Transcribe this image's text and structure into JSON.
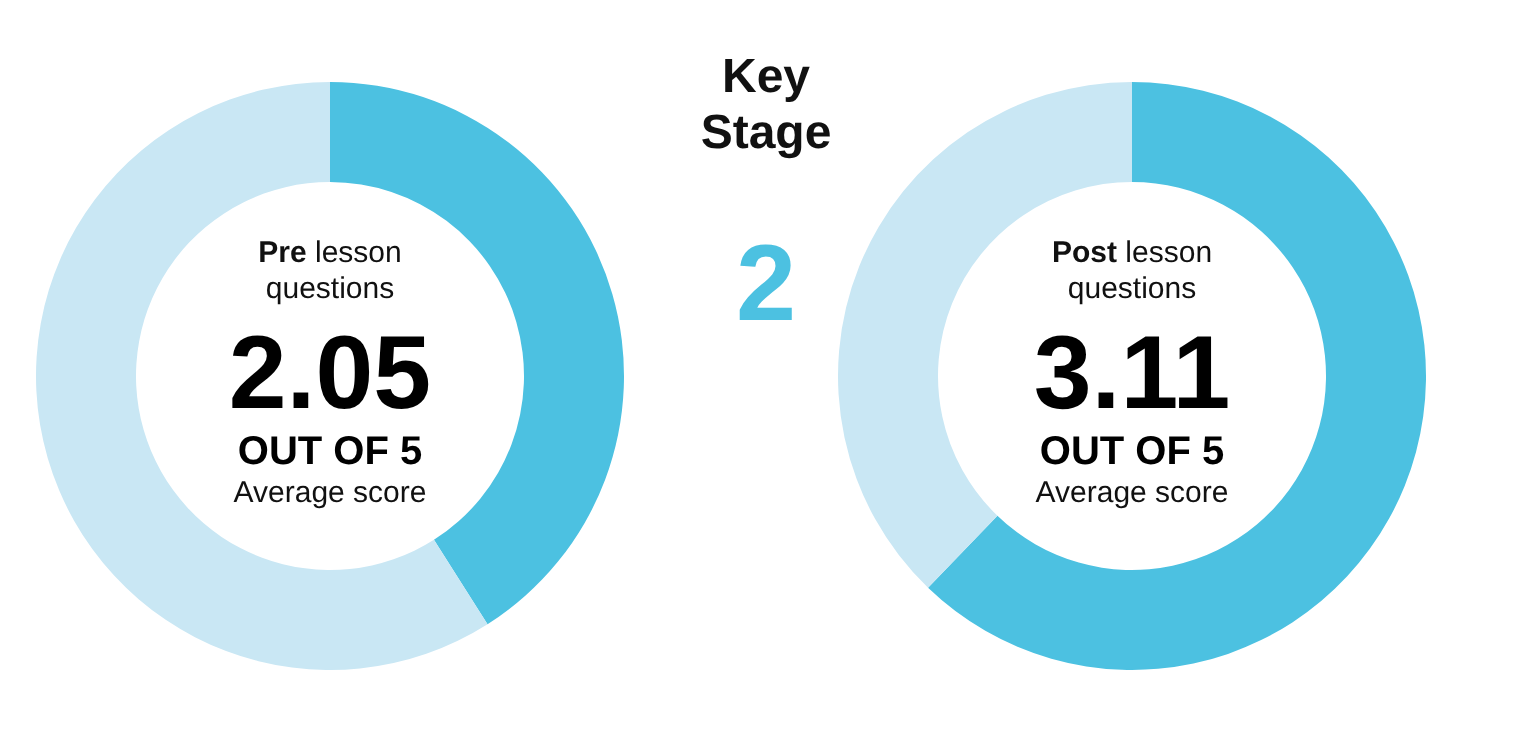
{
  "chart_data": [
    {
      "type": "donut",
      "title": "Pre lesson questions",
      "categories": [
        null,
        null
      ],
      "values": [
        2.05,
        2.95
      ],
      "colors": [
        "#4cc1e1",
        "#c9e7f4"
      ],
      "value_labels": [
        "2.05",
        null
      ],
      "annotations": [
        "OUT OF 5",
        "Average score"
      ]
    },
    {
      "type": "other",
      "title": "Key Stage",
      "annotations": [
        "2"
      ]
    },
    {
      "type": "donut",
      "title": "Post lesson questions",
      "categories": [
        null,
        null
      ],
      "values": [
        3.11,
        1.89
      ],
      "colors": [
        "#4cc1e1",
        "#c9e7f4"
      ],
      "value_labels": [
        "3.11",
        null
      ],
      "annotations": [
        "OUT OF 5",
        "Average score"
      ]
    }
  ]
}
